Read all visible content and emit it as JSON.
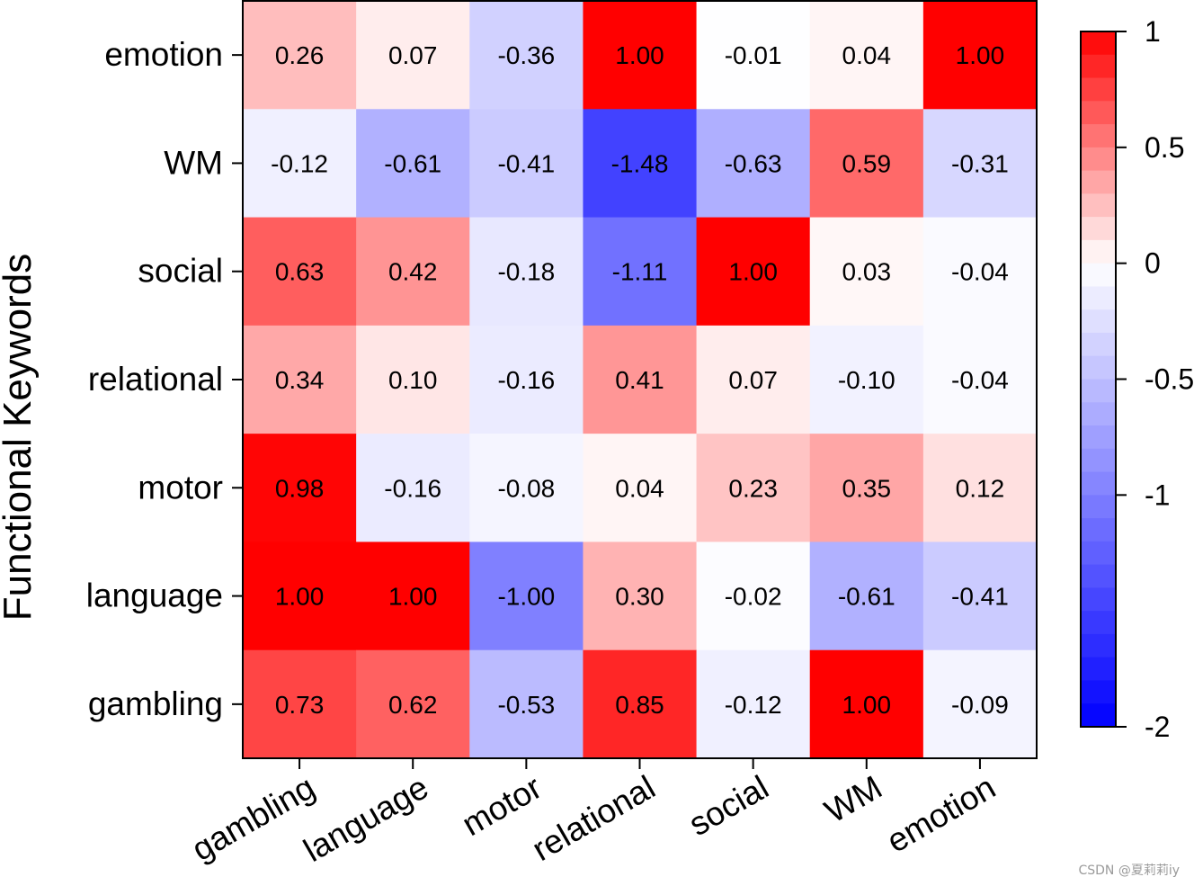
{
  "chart_data": {
    "type": "heatmap",
    "ylabel": "Functional Keywords",
    "xlabel": "",
    "x_categories": [
      "gambling",
      "language",
      "motor",
      "relational",
      "social",
      "WM",
      "emotion"
    ],
    "y_categories": [
      "emotion",
      "WM",
      "social",
      "relational",
      "motor",
      "language",
      "gambling"
    ],
    "values": [
      [
        0.26,
        0.07,
        -0.36,
        1.0,
        -0.01,
        0.04,
        1.0
      ],
      [
        -0.12,
        -0.61,
        -0.41,
        -1.48,
        -0.63,
        0.59,
        -0.31
      ],
      [
        0.63,
        0.42,
        -0.18,
        -1.11,
        1.0,
        0.03,
        -0.04
      ],
      [
        0.34,
        0.1,
        -0.16,
        0.41,
        0.07,
        -0.1,
        -0.04
      ],
      [
        0.98,
        -0.16,
        -0.08,
        0.04,
        0.23,
        0.35,
        0.12
      ],
      [
        1.0,
        1.0,
        -1.0,
        0.3,
        -0.02,
        -0.61,
        -0.41
      ],
      [
        0.73,
        0.62,
        -0.53,
        0.85,
        -0.12,
        1.0,
        -0.09
      ]
    ],
    "cell_labels": [
      [
        "0.26",
        "0.07",
        "-0.36",
        "1.00",
        "-0.01",
        "0.04",
        "1.00"
      ],
      [
        "-0.12",
        "-0.61",
        "-0.41",
        "-1.48",
        "-0.63",
        "0.59",
        "-0.31"
      ],
      [
        "0.63",
        "0.42",
        "-0.18",
        "-1.11",
        "1.00",
        "0.03",
        "-0.04"
      ],
      [
        "0.34",
        "0.10",
        "-0.16",
        "0.41",
        "0.07",
        "-0.10",
        "-0.04"
      ],
      [
        "0.98",
        "-0.16",
        "-0.08",
        "0.04",
        "0.23",
        "0.35",
        "0.12"
      ],
      [
        "1.00",
        "1.00",
        "-1.00",
        "0.30",
        "-0.02",
        "-0.61",
        "-0.41"
      ],
      [
        "0.73",
        "0.62",
        "-0.53",
        "0.85",
        "-0.12",
        "1.00",
        "-0.09"
      ]
    ],
    "colorbar": {
      "range": [
        -2,
        1
      ],
      "ticks": [
        1,
        0.5,
        0,
        -0.5,
        -1,
        -2
      ],
      "tick_labels": [
        "1",
        "0.5",
        "0",
        "-0.5",
        "-1",
        "-2"
      ],
      "low_color": "#0000ff",
      "mid_color": "#ffffff",
      "high_color": "#ff0000",
      "bands": 30
    }
  },
  "watermark": "CSDN @夏莉莉iy"
}
